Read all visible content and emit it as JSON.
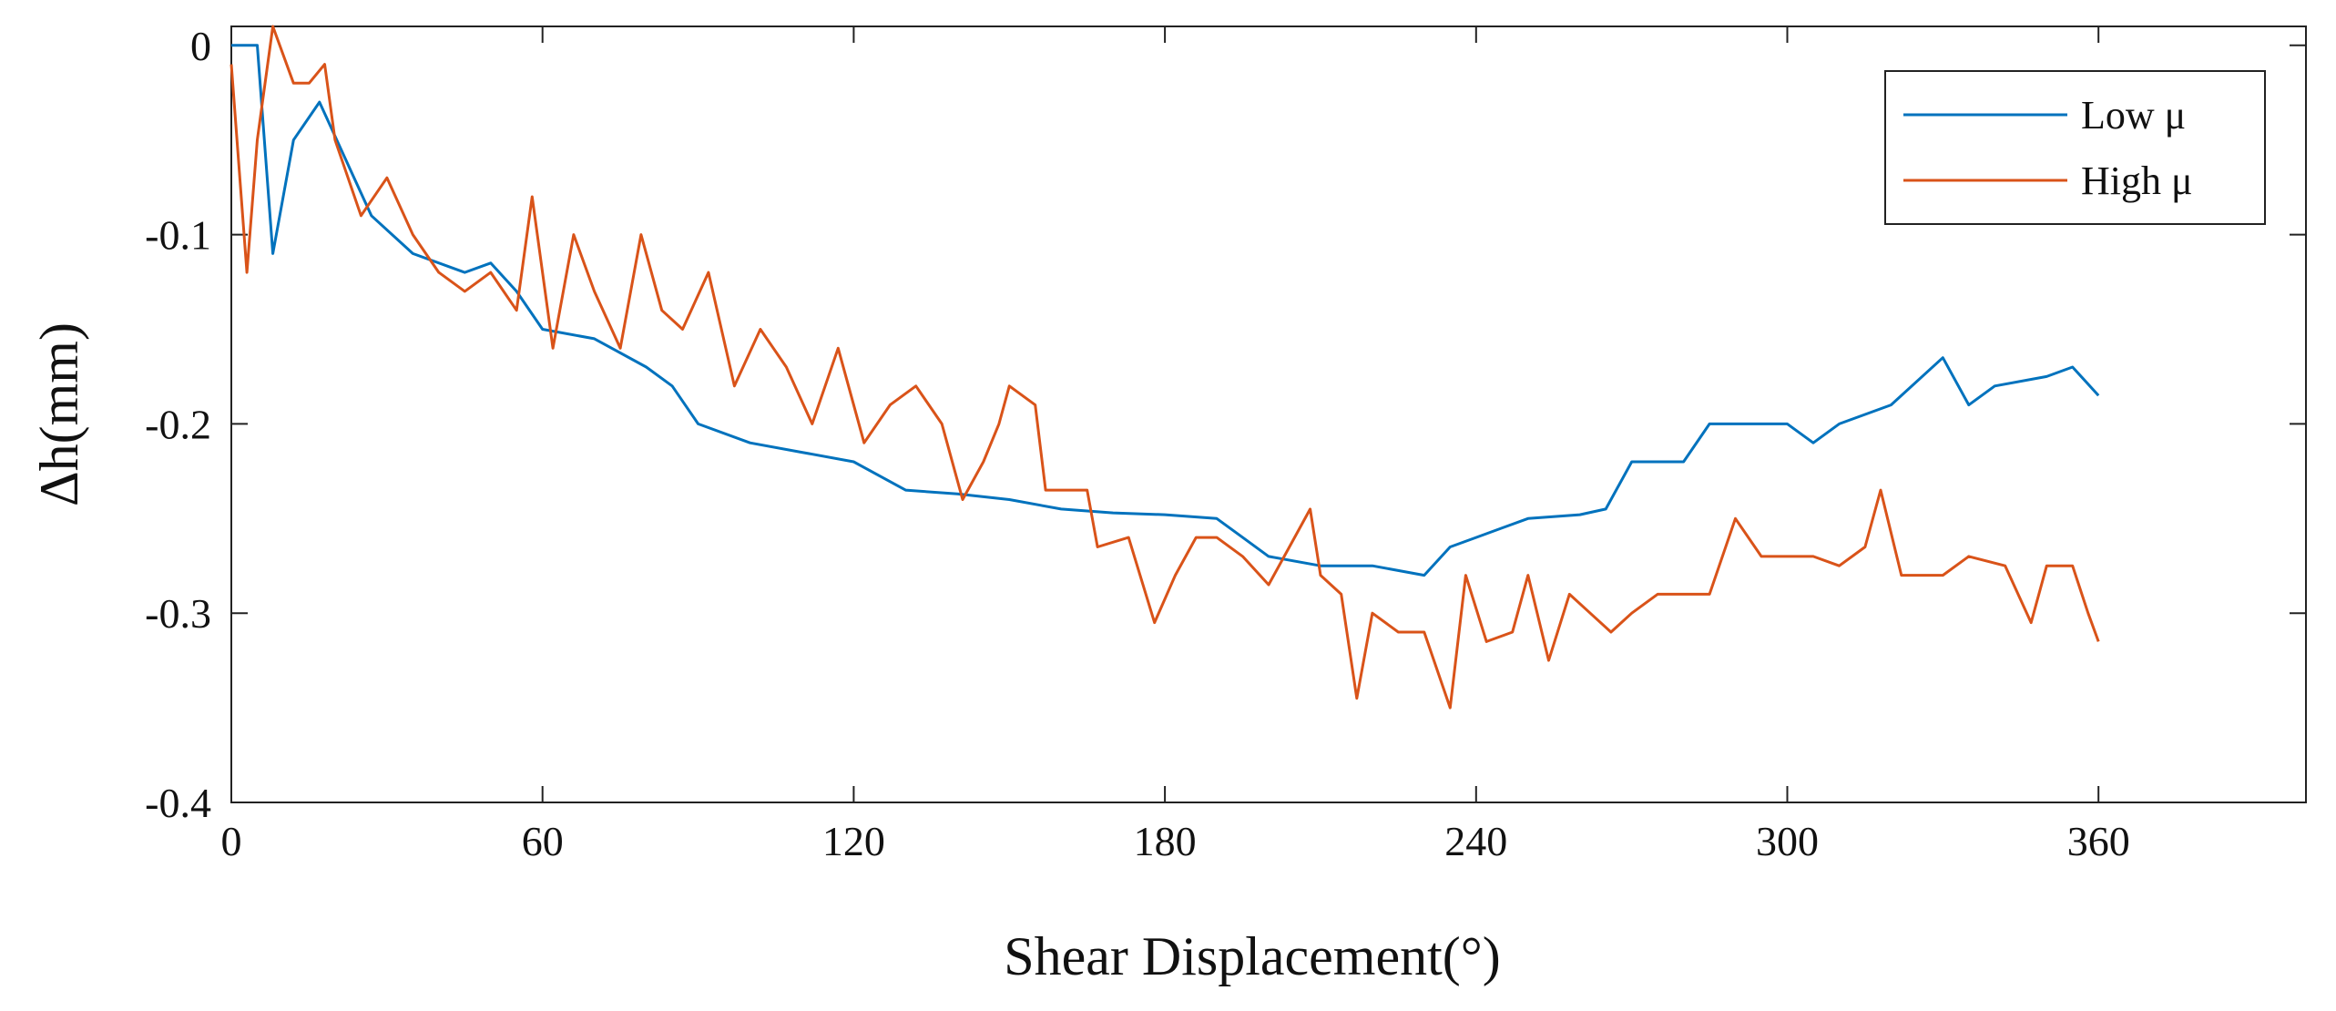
{
  "chart_data": {
    "type": "line",
    "xlabel": "Shear Displacement(°)",
    "ylabel": "Δh(mm)",
    "xlim": [
      0,
      400
    ],
    "ylim": [
      -0.4,
      0.01
    ],
    "xticks": [
      0,
      60,
      120,
      180,
      240,
      300,
      360
    ],
    "yticks": [
      0,
      -0.1,
      -0.2,
      -0.3,
      -0.4
    ],
    "legend": "upper right",
    "series": [
      {
        "name": "Low μ",
        "color": "#0072bd",
        "x": [
          0,
          5,
          8,
          12,
          17,
          22,
          27,
          35,
          45,
          50,
          55,
          60,
          70,
          80,
          85,
          90,
          100,
          110,
          120,
          130,
          140,
          150,
          160,
          170,
          180,
          190,
          195,
          200,
          210,
          220,
          230,
          235,
          240,
          250,
          260,
          265,
          270,
          280,
          285,
          290,
          300,
          305,
          310,
          320,
          330,
          335,
          340,
          350,
          355,
          360
        ],
        "values": [
          0,
          0,
          -0.11,
          -0.05,
          -0.03,
          -0.06,
          -0.09,
          -0.11,
          -0.12,
          -0.115,
          -0.13,
          -0.15,
          -0.155,
          -0.17,
          -0.18,
          -0.2,
          -0.21,
          -0.215,
          -0.22,
          -0.235,
          -0.237,
          -0.24,
          -0.245,
          -0.247,
          -0.248,
          -0.25,
          -0.26,
          -0.27,
          -0.275,
          -0.275,
          -0.28,
          -0.265,
          -0.26,
          -0.25,
          -0.248,
          -0.245,
          -0.22,
          -0.22,
          -0.2,
          -0.2,
          -0.2,
          -0.21,
          -0.2,
          -0.19,
          -0.165,
          -0.19,
          -0.18,
          -0.175,
          -0.17,
          -0.185
        ]
      },
      {
        "name": "High μ",
        "color": "#d95319",
        "x": [
          0,
          3,
          5,
          8,
          12,
          15,
          18,
          20,
          25,
          30,
          35,
          40,
          45,
          50,
          55,
          58,
          62,
          66,
          70,
          75,
          79,
          83,
          87,
          92,
          97,
          102,
          107,
          112,
          117,
          122,
          127,
          132,
          137,
          141,
          145,
          148,
          150,
          155,
          157,
          165,
          167,
          173,
          178,
          182,
          186,
          190,
          195,
          200,
          205,
          208,
          210,
          214,
          217,
          220,
          225,
          230,
          235,
          238,
          242,
          247,
          250,
          254,
          258,
          262,
          266,
          270,
          275,
          285,
          290,
          295,
          305,
          310,
          315,
          318,
          322,
          330,
          335,
          342,
          347,
          350,
          355,
          358,
          360
        ],
        "values": [
          -0.01,
          -0.12,
          -0.05,
          0.01,
          -0.02,
          -0.02,
          -0.01,
          -0.05,
          -0.09,
          -0.07,
          -0.1,
          -0.12,
          -0.13,
          -0.12,
          -0.14,
          -0.08,
          -0.16,
          -0.1,
          -0.13,
          -0.16,
          -0.1,
          -0.14,
          -0.15,
          -0.12,
          -0.18,
          -0.15,
          -0.17,
          -0.2,
          -0.16,
          -0.21,
          -0.19,
          -0.18,
          -0.2,
          -0.24,
          -0.22,
          -0.2,
          -0.18,
          -0.19,
          -0.235,
          -0.235,
          -0.265,
          -0.26,
          -0.305,
          -0.28,
          -0.26,
          -0.26,
          -0.27,
          -0.285,
          -0.26,
          -0.245,
          -0.28,
          -0.29,
          -0.345,
          -0.3,
          -0.31,
          -0.31,
          -0.35,
          -0.28,
          -0.315,
          -0.31,
          -0.28,
          -0.325,
          -0.29,
          -0.3,
          -0.31,
          -0.3,
          -0.29,
          -0.29,
          -0.25,
          -0.27,
          -0.27,
          -0.275,
          -0.265,
          -0.235,
          -0.28,
          -0.28,
          -0.27,
          -0.275,
          -0.305,
          -0.275,
          -0.275,
          -0.3,
          -0.315
        ]
      }
    ]
  }
}
